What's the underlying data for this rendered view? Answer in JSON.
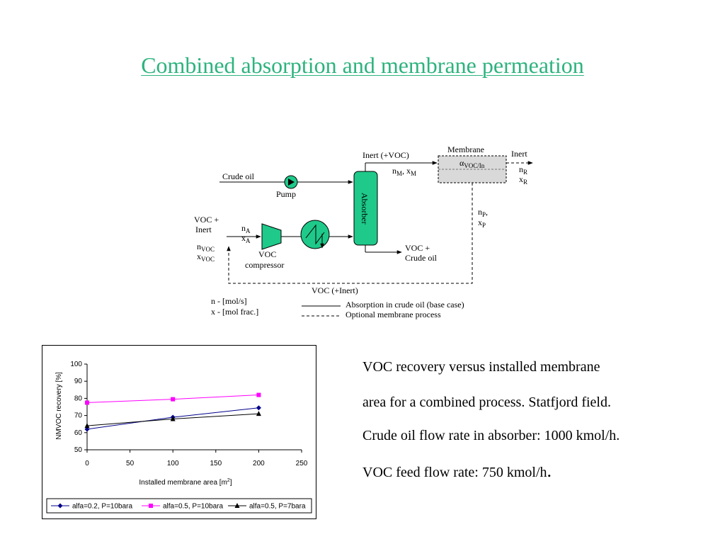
{
  "slide": {
    "title": "Combined absorption and membrane permeation"
  },
  "diagram": {
    "crude_oil": "Crude oil",
    "pump": "Pump",
    "voc_inert_1": "VOC +",
    "voc_inert_2": "Inert",
    "n_voc": "VOC",
    "x_voc": "VOC",
    "n_a": "A",
    "x_a": "A",
    "compressor_1": "VOC",
    "compressor_2": "compressor",
    "absorber": "Absorber",
    "inert_voc_top": "Inert (+VOC)",
    "n_m_x_m": "M",
    "membrane": "Membrane",
    "alpha_label": "VOC/In",
    "inert_out": "Inert",
    "n_r": "R",
    "x_r": "R",
    "n_p": "P",
    "x_p": "P",
    "voc_crude_1": "VOC +",
    "voc_crude_2": "Crude oil",
    "voc_inert_recycle": "VOC (+Inert)",
    "legend_n": "n - [mol/s]",
    "legend_x": "x - [mol frac.]",
    "legend_solid": "Absorption in crude oil (base case)",
    "legend_dashed": "Optional membrane process"
  },
  "colors": {
    "title": "#2db37e",
    "equipment": "#1ec98a",
    "series1": "#00008b",
    "series2": "#ff00ff",
    "series3": "#000000"
  },
  "chart_data": {
    "type": "line",
    "x": [
      0,
      100,
      200
    ],
    "series": [
      {
        "name": "alfa=0.2, P=10bara",
        "values": [
          62,
          69,
          74.5
        ],
        "color": "#00008b",
        "marker": "diamond"
      },
      {
        "name": "alfa=0.5, P=10bara",
        "values": [
          77.5,
          79.5,
          82
        ],
        "color": "#ff00ff",
        "marker": "square"
      },
      {
        "name": "alfa=0.5, P=7bara",
        "values": [
          64,
          68,
          71
        ],
        "color": "#000000",
        "marker": "triangle"
      }
    ],
    "xlabel": "Installed membrane area [m",
    "xlabel_sup": "2",
    "xlabel_end": "]",
    "ylabel": "NMVOC recovery [%]",
    "xlim": [
      0,
      250
    ],
    "ylim": [
      50,
      100
    ],
    "xticks": [
      0,
      50,
      100,
      150,
      200,
      250
    ],
    "yticks": [
      50,
      60,
      70,
      80,
      90,
      100
    ],
    "grid": false,
    "legend_position": "bottom"
  },
  "caption": {
    "line1": "VOC recovery versus installed membrane",
    "line2": " area for a combined process. Statfjord field.",
    "line3": "Crude oil flow rate in absorber: 1000 kmol/h.",
    "line4": "VOC feed flow rate: 750 kmol/h",
    "line4_end": "."
  }
}
